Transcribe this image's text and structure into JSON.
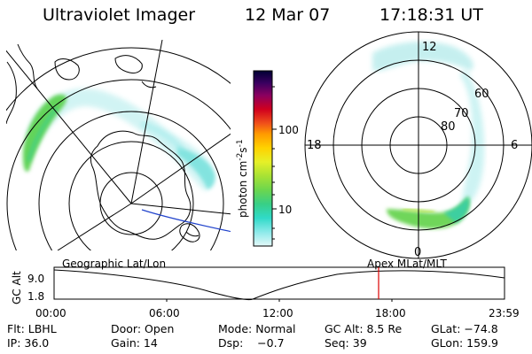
{
  "header": {
    "instrument": "Ultraviolet Imager",
    "date": "12 Mar 07",
    "time": "17:18:31 UT"
  },
  "colorbar": {
    "label": "photon cm",
    "label_exp": "-2",
    "label_s": "s",
    "label_s_exp": "-1",
    "ticks": [
      "100",
      "10"
    ],
    "colors": [
      "#000033",
      "#1a0040",
      "#5a0070",
      "#8a0060",
      "#c0002a",
      "#e8401a",
      "#ff8c00",
      "#ffc800",
      "#e6f028",
      "#b4e632",
      "#7cd84a",
      "#3ccf7a",
      "#28d8c8",
      "#7ee8e8",
      "#c8f4f4"
    ]
  },
  "geo_map": {
    "label": "Geographic Lat/Lon"
  },
  "apex_map": {
    "label": "Apex MLat/MLT",
    "lat_labels": [
      "60",
      "70",
      "80"
    ],
    "mlt_labels": {
      "top": "12",
      "left": "18",
      "right": "6",
      "bottom": "0"
    }
  },
  "timeline": {
    "ylabel": "GC Alt",
    "yticks": [
      "9.0",
      "1.8"
    ],
    "xticks": [
      "00:00",
      "06:00",
      "12:00",
      "18:00",
      "23:59"
    ],
    "current_marker_time": "17:18",
    "marker_color": "#dd0000"
  },
  "status": {
    "flt": "Flt: LBHL",
    "door": "Door: Open",
    "mode": "Mode: Normal",
    "gcalt": "GC Alt: 8.5 Re",
    "glat": "GLat: −74.8",
    "ip": "IP: 36.0",
    "gain": "Gain: 14",
    "dsp": "Dsp:    −0.7",
    "seq": "Seq: 39",
    "glon": "GLon: 159.9"
  }
}
